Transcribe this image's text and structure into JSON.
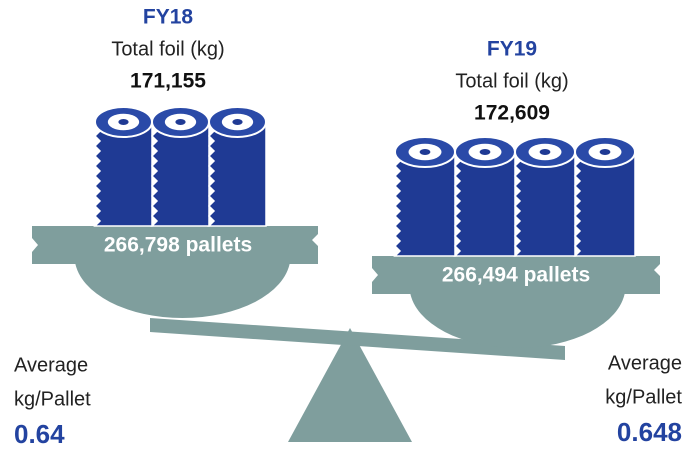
{
  "left": {
    "year": "FY18",
    "label": "Total foil (kg)",
    "total": "171,155",
    "pallets": "266,798 pallets",
    "avg_label_1": "Average",
    "avg_label_2": "kg/Pallet",
    "avg_value": "0.64"
  },
  "right": {
    "year": "FY19",
    "label": "Total foil (kg)",
    "total": "172,609",
    "pallets": "266,494 pallets",
    "avg_label_1": "Average",
    "avg_label_2": "kg/Pallet",
    "avg_value": "0.648"
  }
}
